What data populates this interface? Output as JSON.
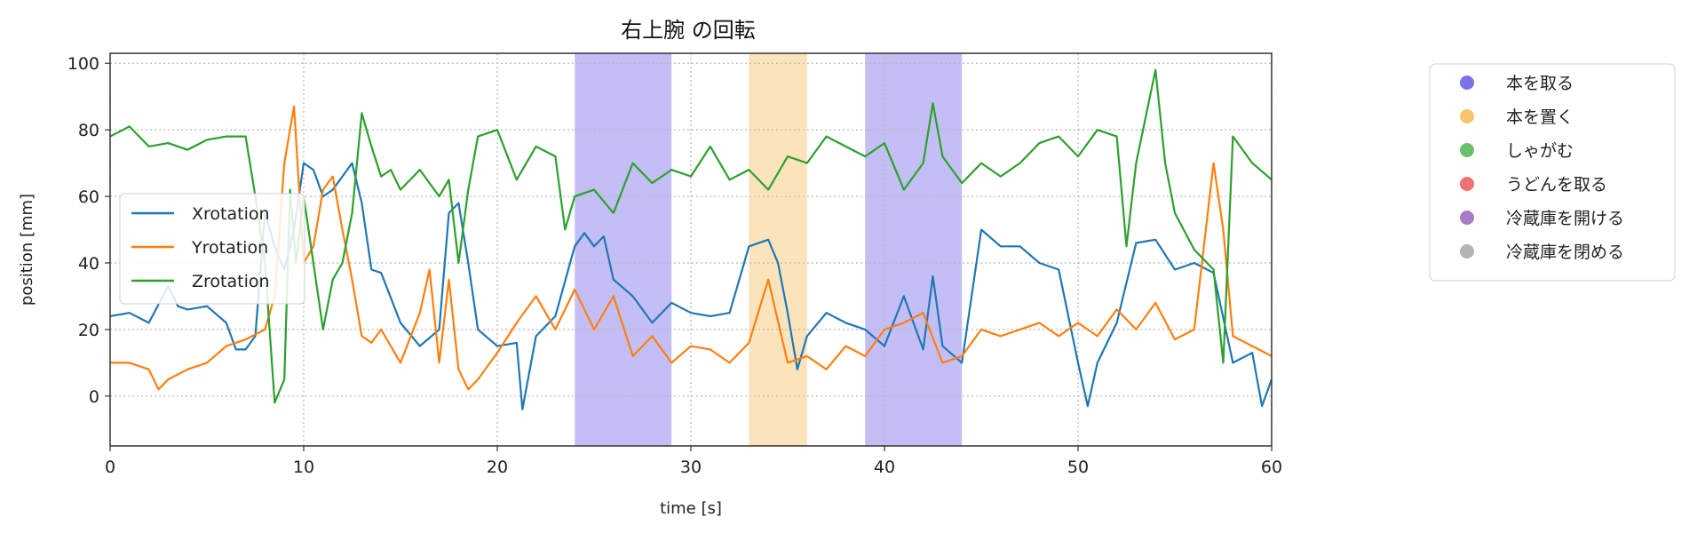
{
  "chart_data": {
    "type": "line",
    "title": "右上腕 の回転",
    "xlabel": "time [s]",
    "ylabel": "position [mm]",
    "xlim": [
      0,
      60
    ],
    "ylim": [
      -15,
      103
    ],
    "xticks": [
      0,
      10,
      20,
      30,
      40,
      50,
      60
    ],
    "yticks": [
      0,
      20,
      40,
      60,
      80,
      100
    ],
    "grid": true,
    "series": [
      {
        "name": "Xrotation",
        "color": "#1f77b4",
        "x": [
          0,
          1,
          2,
          3,
          3.5,
          4,
          5,
          6,
          6.5,
          7,
          7.5,
          8,
          8.5,
          9,
          9.5,
          10,
          10.5,
          11,
          11.5,
          12,
          12.5,
          13,
          13.5,
          14,
          15,
          16,
          17,
          17.5,
          18,
          18.5,
          19,
          20,
          21,
          21.3,
          22,
          23,
          24,
          24.5,
          25,
          25.5,
          26,
          27,
          28,
          29,
          30,
          31,
          32,
          33,
          34,
          34.5,
          35,
          35.5,
          36,
          37,
          38,
          39,
          40,
          41,
          42,
          42.5,
          43,
          44,
          45,
          46,
          47,
          48,
          49,
          50,
          50.5,
          51,
          52,
          53,
          54,
          55,
          56,
          57,
          58,
          59,
          59.5,
          60
        ],
        "y": [
          24,
          25,
          22,
          33,
          27,
          26,
          27,
          22,
          14,
          14,
          18,
          55,
          45,
          38,
          50,
          70,
          68,
          60,
          62,
          66,
          70,
          58,
          38,
          37,
          22,
          15,
          20,
          55,
          58,
          40,
          20,
          15,
          16,
          -4,
          18,
          24,
          45,
          49,
          45,
          48,
          35,
          30,
          22,
          28,
          25,
          24,
          25,
          45,
          47,
          40,
          25,
          8,
          18,
          25,
          22,
          20,
          15,
          30,
          14,
          36,
          15,
          10,
          50,
          45,
          45,
          40,
          38,
          10,
          -3,
          10,
          22,
          46,
          47,
          38,
          40,
          37,
          10,
          13,
          -3,
          5
        ]
      },
      {
        "name": "Yrotation",
        "color": "#ff7f0e",
        "x": [
          0,
          1,
          2,
          2.5,
          3,
          4,
          5,
          6,
          7,
          8,
          8.5,
          9,
          9.5,
          10,
          10.5,
          11,
          11.5,
          12,
          12.5,
          13,
          13.5,
          14,
          15,
          16,
          16.5,
          17,
          17.5,
          18,
          18.5,
          19,
          20,
          21,
          22,
          23,
          24,
          25,
          26,
          27,
          28,
          29,
          30,
          31,
          32,
          33,
          34,
          35,
          36,
          37,
          38,
          39,
          40,
          41,
          42,
          43,
          44,
          45,
          46,
          47,
          48,
          49,
          50,
          51,
          52,
          53,
          54,
          55,
          56,
          57,
          57.5,
          58,
          59,
          60
        ],
        "y": [
          10,
          10,
          8,
          2,
          5,
          8,
          10,
          15,
          17,
          20,
          30,
          70,
          87,
          40,
          45,
          62,
          66,
          50,
          35,
          18,
          16,
          20,
          10,
          25,
          38,
          10,
          35,
          8,
          2,
          5,
          13,
          22,
          30,
          20,
          32,
          20,
          30,
          12,
          18,
          10,
          15,
          14,
          10,
          16,
          35,
          10,
          12,
          8,
          15,
          12,
          20,
          22,
          25,
          10,
          12,
          20,
          18,
          20,
          22,
          18,
          22,
          18,
          26,
          20,
          28,
          17,
          20,
          70,
          50,
          18,
          15,
          12
        ]
      },
      {
        "name": "Zrotation",
        "color": "#2ca02c",
        "x": [
          0,
          1,
          2,
          3,
          4,
          5,
          6,
          7,
          7.5,
          8,
          8.5,
          9,
          9.3,
          9.6,
          10,
          10.5,
          11,
          11.5,
          12,
          12.5,
          13,
          13.5,
          14,
          14.5,
          15,
          16,
          17,
          17.5,
          18,
          18.5,
          19,
          20,
          21,
          22,
          23,
          23.5,
          24,
          25,
          26,
          27,
          28,
          29,
          30,
          31,
          32,
          33,
          34,
          35,
          36,
          37,
          38,
          39,
          40,
          41,
          42,
          42.5,
          43,
          44,
          45,
          46,
          47,
          48,
          49,
          50,
          51,
          52,
          52.5,
          53,
          54,
          54.5,
          55,
          56,
          57,
          57.5,
          58,
          59,
          60
        ],
        "y": [
          78,
          81,
          75,
          76,
          74,
          77,
          78,
          78,
          60,
          40,
          -2,
          5,
          62,
          40,
          60,
          40,
          20,
          35,
          40,
          55,
          85,
          75,
          66,
          68,
          62,
          68,
          60,
          65,
          40,
          62,
          78,
          80,
          65,
          75,
          72,
          50,
          60,
          62,
          55,
          70,
          64,
          68,
          66,
          75,
          65,
          68,
          62,
          72,
          70,
          78,
          75,
          72,
          76,
          62,
          70,
          88,
          72,
          64,
          70,
          66,
          70,
          76,
          78,
          72,
          80,
          78,
          45,
          70,
          98,
          70,
          55,
          44,
          38,
          10,
          78,
          70,
          65
        ]
      }
    ],
    "bands": [
      {
        "label": "本を取る",
        "x": [
          24,
          29
        ],
        "color": "#7b72ea"
      },
      {
        "label": "本を置く",
        "x": [
          33,
          36
        ],
        "color": "#f7c36b"
      },
      {
        "label": "本を取る",
        "x": [
          39,
          44
        ],
        "color": "#7b72ea"
      }
    ],
    "inner_legend": {
      "placement": "center-left",
      "entries": [
        "Xrotation",
        "Yrotation",
        "Zrotation"
      ]
    },
    "outer_legend": {
      "placement": "right",
      "entries": [
        {
          "label": "本を取る",
          "color": "#7b72ea"
        },
        {
          "label": "本を置く",
          "color": "#f7c36b"
        },
        {
          "label": "しゃがむ",
          "color": "#6cbf6c"
        },
        {
          "label": "うどんを取る",
          "color": "#ef7070"
        },
        {
          "label": "冷蔵庫を開ける",
          "color": "#a77bc6"
        },
        {
          "label": "冷蔵庫を閉める",
          "color": "#b4b4b4"
        }
      ]
    }
  }
}
